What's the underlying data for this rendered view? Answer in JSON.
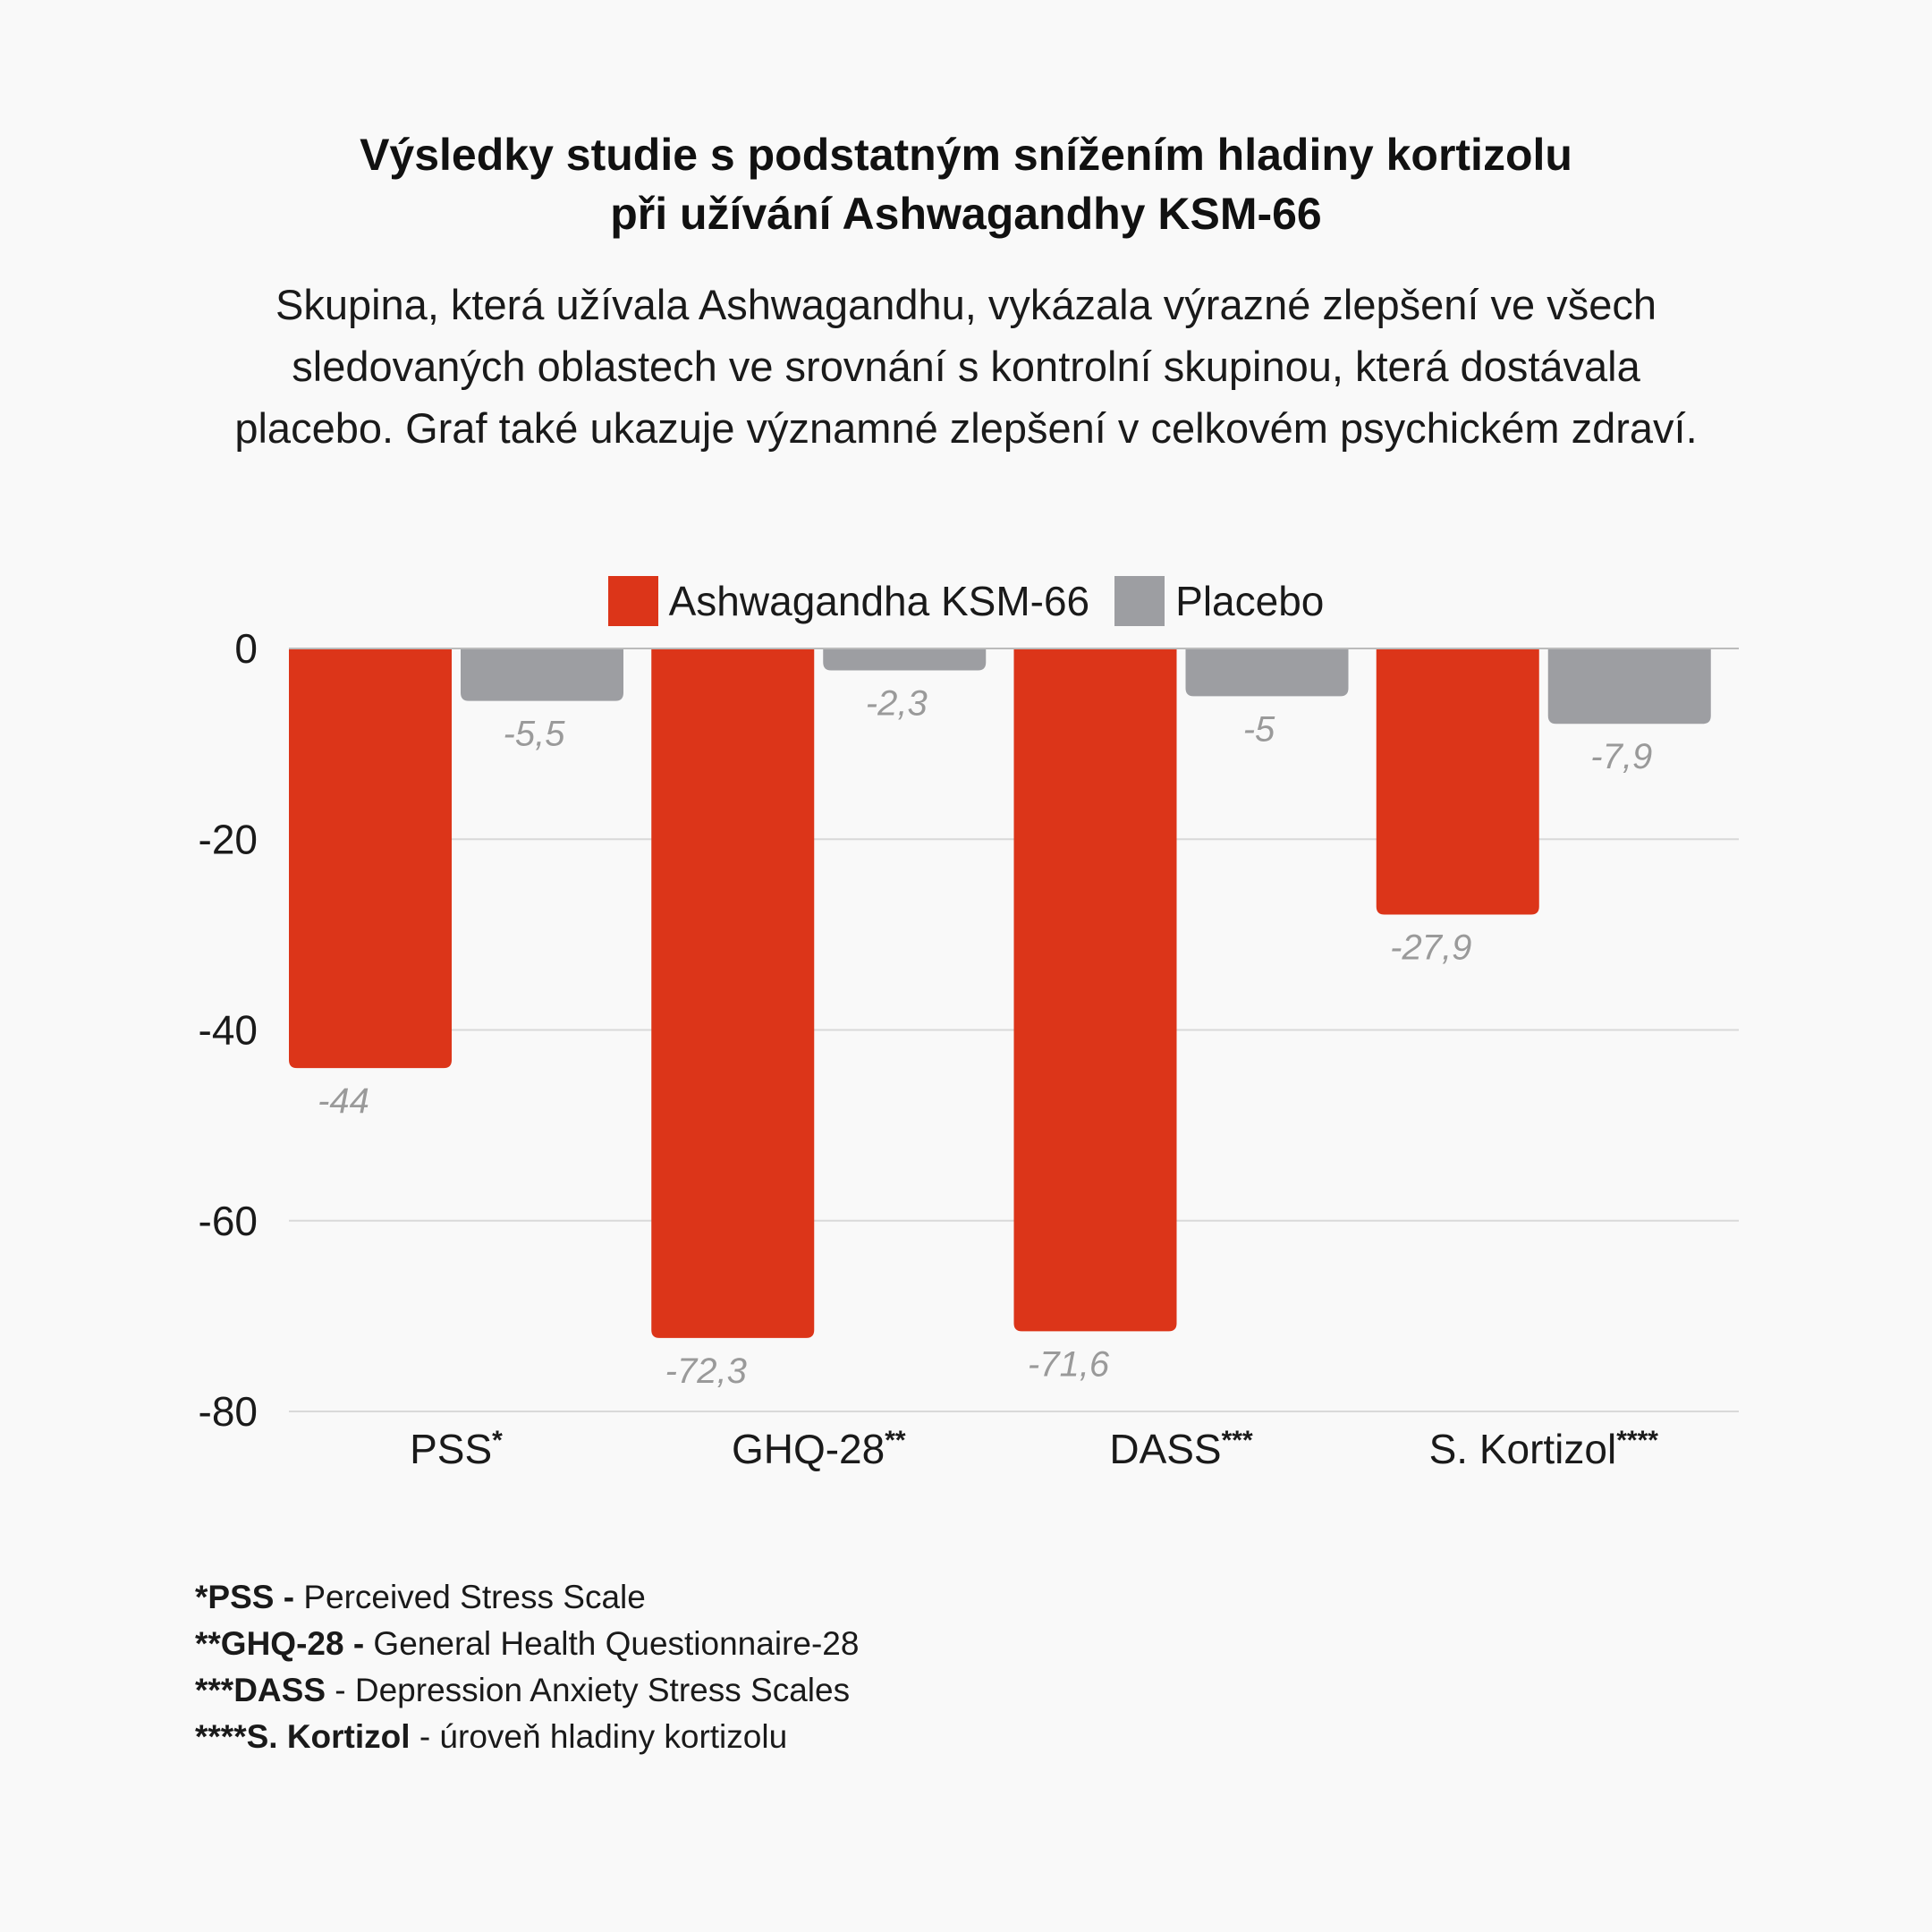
{
  "title": {
    "line1": "Výsledky studie s podstatným snížením hladiny kortizolu",
    "line2": "při užívání Ashwagandhy KSM-66"
  },
  "subtitle": {
    "line1": "Skupina, která užívala Ashwagandhu, vykázala výrazné zlepšení ve všech",
    "line2": "sledovaných oblastech ve srovnání s kontrolní skupinou, která dostávala",
    "line3": "placebo. Graf také ukazuje významné zlepšení v celkovém psychickém zdraví."
  },
  "colors": {
    "ashwagandha": "#dc3519",
    "placebo": "#9d9ea2",
    "value_label": "#9a9a9a",
    "grid": "#d9d9d9",
    "axis": "#bbbbbb"
  },
  "chart_data": {
    "type": "bar",
    "categories": [
      "PSS",
      "GHQ-28",
      "DASS",
      "S. Kortizol"
    ],
    "category_marks": [
      "*",
      "**",
      "***",
      "****"
    ],
    "series": [
      {
        "name": "Ashwagandha KSM-66",
        "values": [
          -44,
          -72.3,
          -71.6,
          -27.9
        ],
        "labels": [
          "-44",
          "-72,3",
          "-71,6",
          "-27,9"
        ]
      },
      {
        "name": "Placebo",
        "values": [
          -5.5,
          -2.3,
          -5,
          -7.9
        ],
        "labels": [
          "-5,5",
          "-2,3",
          "-5",
          "-7,9"
        ]
      }
    ],
    "ylim": [
      -80,
      0
    ],
    "yticks": [
      0,
      -20,
      -40,
      -60,
      -80
    ],
    "ytick_labels": [
      "0",
      "-20",
      "-40",
      "-60",
      "-80"
    ],
    "grid": true,
    "legend": "top-center",
    "title": "Výsledky studie s podstatným snížením hladiny kortizolu při užívání Ashwagandhy KSM-66",
    "xlabel": "",
    "ylabel": ""
  },
  "footnotes": [
    {
      "bold": "*PSS -",
      "text": " Perceived Stress Scale"
    },
    {
      "bold": "**GHQ-28 -",
      "text": " General Health Questionnaire-28"
    },
    {
      "bold": "***DASS",
      "text": " - Depression Anxiety Stress Scales"
    },
    {
      "bold": "****S. Kortizol",
      "text": " - úroveň hladiny kortizolu"
    }
  ]
}
